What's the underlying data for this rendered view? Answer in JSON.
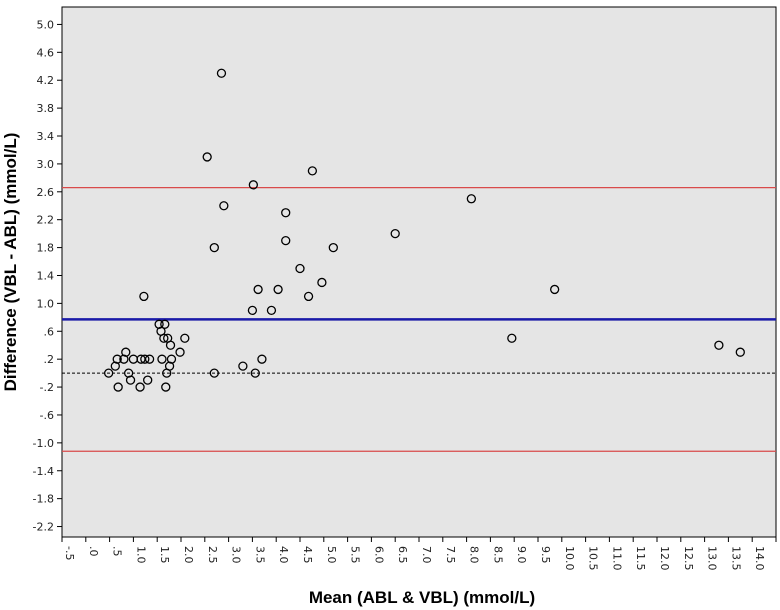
{
  "chart_data": {
    "type": "scatter",
    "title": "",
    "xlabel": "Mean (ABL & VBL) (mmol/L)",
    "ylabel": "Difference (VBL - ABL) (mmol/L)",
    "xlim": [
      -0.5,
      14.5
    ],
    "ylim": [
      -2.35,
      5.25
    ],
    "x_ticks": [
      {
        "v": -0.5,
        "label": "-.5"
      },
      {
        "v": 0.0,
        "label": ".0"
      },
      {
        "v": 0.5,
        "label": ".5"
      },
      {
        "v": 1.0,
        "label": "1.0"
      },
      {
        "v": 1.5,
        "label": "1.5"
      },
      {
        "v": 2.0,
        "label": "2.0"
      },
      {
        "v": 2.5,
        "label": "2.5"
      },
      {
        "v": 3.0,
        "label": "3.0"
      },
      {
        "v": 3.5,
        "label": "3.5"
      },
      {
        "v": 4.0,
        "label": "4.0"
      },
      {
        "v": 4.5,
        "label": "4.5"
      },
      {
        "v": 5.0,
        "label": "5.0"
      },
      {
        "v": 5.5,
        "label": "5.5"
      },
      {
        "v": 6.0,
        "label": "6.0"
      },
      {
        "v": 6.5,
        "label": "6.5"
      },
      {
        "v": 7.0,
        "label": "7.0"
      },
      {
        "v": 7.5,
        "label": "7.5"
      },
      {
        "v": 8.0,
        "label": "8.0"
      },
      {
        "v": 8.5,
        "label": "8.5"
      },
      {
        "v": 9.0,
        "label": "9.0"
      },
      {
        "v": 9.5,
        "label": "9.5"
      },
      {
        "v": 10.0,
        "label": "10.0"
      },
      {
        "v": 10.5,
        "label": "10.5"
      },
      {
        "v": 11.0,
        "label": "11.0"
      },
      {
        "v": 11.5,
        "label": "11.5"
      },
      {
        "v": 12.0,
        "label": "12.0"
      },
      {
        "v": 12.5,
        "label": "12.5"
      },
      {
        "v": 13.0,
        "label": "13.0"
      },
      {
        "v": 13.5,
        "label": "13.5"
      },
      {
        "v": 14.0,
        "label": "14.0"
      },
      {
        "v": 14.5,
        "label": "14.5"
      }
    ],
    "y_ticks": [
      {
        "v": 5.0,
        "label": "5.0"
      },
      {
        "v": 4.6,
        "label": "4.6"
      },
      {
        "v": 4.2,
        "label": "4.2"
      },
      {
        "v": 3.8,
        "label": "3.8"
      },
      {
        "v": 3.4,
        "label": "3.4"
      },
      {
        "v": 3.0,
        "label": "3.0"
      },
      {
        "v": 2.6,
        "label": "2.6"
      },
      {
        "v": 2.2,
        "label": "2.2"
      },
      {
        "v": 1.8,
        "label": "1.8"
      },
      {
        "v": 1.4,
        "label": "1.4"
      },
      {
        "v": 1.0,
        "label": "1.0"
      },
      {
        "v": 0.6,
        "label": ".6"
      },
      {
        "v": 0.2,
        "label": ".2"
      },
      {
        "v": -0.2,
        "label": "-.2"
      },
      {
        "v": -0.6,
        "label": "-.6"
      },
      {
        "v": -1.0,
        "label": "-1.0"
      },
      {
        "v": -1.4,
        "label": "-1.4"
      },
      {
        "v": -1.8,
        "label": "-1.8"
      },
      {
        "v": -2.2,
        "label": "-2.2"
      }
    ],
    "grid": false,
    "reference_lines": [
      {
        "role": "mean-difference",
        "y": 0.77,
        "color": "#1a1aa8"
      },
      {
        "role": "upper-limit-of-agreement",
        "y": 2.66,
        "color": "#d94a4a"
      },
      {
        "role": "lower-limit-of-agreement",
        "y": -1.12,
        "color": "#d94a4a"
      },
      {
        "role": "zero-line",
        "y": 0.0,
        "color": "#000000",
        "dashed": true
      }
    ],
    "points": [
      {
        "x": 0.48,
        "y": 0.0
      },
      {
        "x": 0.62,
        "y": 0.1
      },
      {
        "x": 0.66,
        "y": 0.2
      },
      {
        "x": 0.68,
        "y": -0.2
      },
      {
        "x": 0.8,
        "y": 0.2
      },
      {
        "x": 0.84,
        "y": 0.3
      },
      {
        "x": 0.9,
        "y": 0.0
      },
      {
        "x": 0.94,
        "y": -0.1
      },
      {
        "x": 1.0,
        "y": 0.2
      },
      {
        "x": 1.14,
        "y": -0.2
      },
      {
        "x": 1.16,
        "y": 0.2
      },
      {
        "x": 1.22,
        "y": 1.1
      },
      {
        "x": 1.24,
        "y": 0.2
      },
      {
        "x": 1.3,
        "y": -0.1
      },
      {
        "x": 1.34,
        "y": 0.2
      },
      {
        "x": 1.54,
        "y": 0.7
      },
      {
        "x": 1.58,
        "y": 0.6
      },
      {
        "x": 1.6,
        "y": 0.2
      },
      {
        "x": 1.64,
        "y": 0.5
      },
      {
        "x": 1.66,
        "y": 0.7
      },
      {
        "x": 1.68,
        "y": -0.2
      },
      {
        "x": 1.7,
        "y": 0.0
      },
      {
        "x": 1.72,
        "y": 0.5
      },
      {
        "x": 1.76,
        "y": 0.1
      },
      {
        "x": 1.78,
        "y": 0.4
      },
      {
        "x": 1.8,
        "y": 0.2
      },
      {
        "x": 1.98,
        "y": 0.3
      },
      {
        "x": 2.08,
        "y": 0.5
      },
      {
        "x": 2.55,
        "y": 3.1
      },
      {
        "x": 2.7,
        "y": 0.0
      },
      {
        "x": 2.7,
        "y": 1.8
      },
      {
        "x": 2.85,
        "y": 4.3
      },
      {
        "x": 2.9,
        "y": 2.4
      },
      {
        "x": 3.3,
        "y": 0.1
      },
      {
        "x": 3.5,
        "y": 0.9
      },
      {
        "x": 3.52,
        "y": 2.7
      },
      {
        "x": 3.56,
        "y": 0.0
      },
      {
        "x": 3.62,
        "y": 1.2
      },
      {
        "x": 3.7,
        "y": 0.2
      },
      {
        "x": 3.9,
        "y": 0.9
      },
      {
        "x": 4.04,
        "y": 1.2
      },
      {
        "x": 4.2,
        "y": 2.3
      },
      {
        "x": 4.2,
        "y": 1.9
      },
      {
        "x": 4.5,
        "y": 1.5
      },
      {
        "x": 4.68,
        "y": 1.1
      },
      {
        "x": 4.76,
        "y": 2.9
      },
      {
        "x": 4.96,
        "y": 1.3
      },
      {
        "x": 5.2,
        "y": 1.8
      },
      {
        "x": 6.5,
        "y": 2.0
      },
      {
        "x": 8.1,
        "y": 2.5
      },
      {
        "x": 8.95,
        "y": 0.5
      },
      {
        "x": 9.85,
        "y": 1.2
      },
      {
        "x": 13.3,
        "y": 0.4
      },
      {
        "x": 13.75,
        "y": 0.3
      }
    ]
  }
}
